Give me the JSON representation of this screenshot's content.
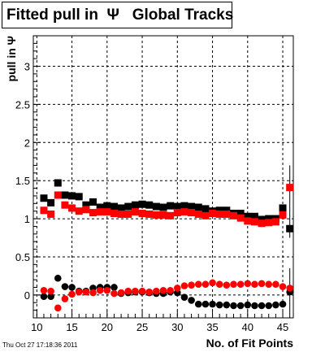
{
  "chart_data": {
    "type": "scatter",
    "title": "Fitted pull in  Ψ   Global Tracks",
    "xlabel": "No. of Fit Points",
    "ylabel": "pull in Ψ",
    "xlim": [
      9.5,
      46.5
    ],
    "ylim": [
      -0.3,
      3.4
    ],
    "x_ticks": [
      10,
      15,
      20,
      25,
      30,
      35,
      40,
      45
    ],
    "y_ticks": [
      0,
      0.5,
      1,
      1.5,
      2,
      2.5,
      3
    ],
    "grid": true,
    "legend": "none",
    "x": [
      11,
      12,
      13,
      14,
      15,
      16,
      17,
      18,
      19,
      20,
      21,
      22,
      23,
      24,
      25,
      26,
      27,
      28,
      29,
      30,
      31,
      32,
      33,
      34,
      35,
      36,
      37,
      38,
      39,
      40,
      41,
      42,
      43,
      44,
      45,
      46
    ],
    "series": [
      {
        "color": "#000000",
        "values": [
          1.27,
          1.21,
          1.47,
          1.31,
          1.3,
          1.29,
          1.18,
          1.22,
          1.15,
          1.17,
          1.16,
          1.14,
          1.16,
          1.18,
          1.19,
          1.18,
          1.16,
          1.15,
          1.17,
          1.16,
          1.17,
          1.16,
          1.15,
          1.13,
          1.1,
          1.11,
          1.11,
          1.07,
          1.07,
          1.03,
          1.03,
          0.99,
          1.0,
          1.0,
          1.14,
          0.87
        ]
      },
      {
        "color": "#ff0000",
        "values": [
          1.11,
          1.06,
          1.31,
          1.18,
          1.14,
          1.1,
          1.12,
          1.08,
          1.09,
          1.09,
          1.07,
          1.06,
          1.06,
          1.09,
          1.07,
          1.06,
          1.05,
          1.05,
          1.04,
          1.08,
          1.09,
          1.08,
          1.06,
          1.04,
          1.07,
          1.06,
          1.06,
          1.04,
          1.01,
          0.97,
          0.96,
          0.94,
          0.95,
          0.96,
          1.05,
          1.41
        ]
      },
      {
        "color": "#000000",
        "values": [
          -0.02,
          -0.02,
          0.22,
          0.11,
          0.1,
          0.05,
          0.05,
          0.09,
          0.1,
          0.1,
          0.1,
          0.02,
          0.03,
          0.04,
          0.04,
          0.03,
          0.02,
          0.02,
          0.04,
          0.03,
          -0.03,
          -0.07,
          -0.12,
          -0.12,
          -0.12,
          -0.13,
          -0.13,
          -0.14,
          -0.14,
          -0.13,
          -0.14,
          -0.14,
          -0.14,
          -0.13,
          -0.12,
          0.04
        ]
      },
      {
        "color": "#ff0000",
        "values": [
          0.06,
          0.05,
          -0.17,
          -0.05,
          0.01,
          0.04,
          0.04,
          0.03,
          0.06,
          0.06,
          0.02,
          0.03,
          0.05,
          0.05,
          0.05,
          0.04,
          0.05,
          0.06,
          0.06,
          0.09,
          0.12,
          0.13,
          0.14,
          0.14,
          0.16,
          0.14,
          0.13,
          0.14,
          0.14,
          0.15,
          0.14,
          0.15,
          0.14,
          0.14,
          0.11,
          0.09
        ]
      }
    ]
  },
  "timestamp": "Thu Oct 27 17:18:36 2011"
}
